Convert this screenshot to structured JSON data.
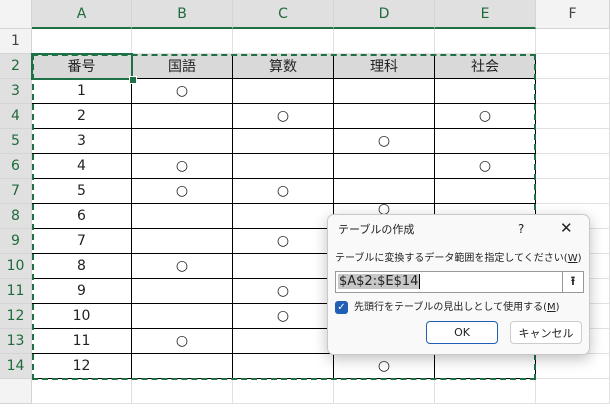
{
  "columns": [
    "A",
    "B",
    "C",
    "D",
    "E",
    "F"
  ],
  "rows": [
    "1",
    "2",
    "3",
    "4",
    "5",
    "6",
    "7",
    "8",
    "9",
    "10",
    "11",
    "12",
    "13",
    "14",
    ""
  ],
  "table": {
    "headers": [
      "番号",
      "国語",
      "算数",
      "理科",
      "社会"
    ],
    "rows": [
      [
        "1",
        "○",
        "",
        "",
        ""
      ],
      [
        "2",
        "",
        "○",
        "",
        "○"
      ],
      [
        "3",
        "",
        "",
        "○",
        ""
      ],
      [
        "4",
        "○",
        "",
        "",
        "○"
      ],
      [
        "5",
        "○",
        "○",
        "",
        ""
      ],
      [
        "6",
        "",
        "",
        "○",
        ""
      ],
      [
        "7",
        "",
        "○",
        "",
        ""
      ],
      [
        "8",
        "○",
        "",
        "",
        ""
      ],
      [
        "9",
        "",
        "○",
        "",
        ""
      ],
      [
        "10",
        "",
        "○",
        "",
        ""
      ],
      [
        "11",
        "○",
        "",
        "",
        ""
      ],
      [
        "12",
        "",
        "",
        "○",
        ""
      ]
    ]
  },
  "dialog": {
    "title": "テーブルの作成",
    "help": "?",
    "close": "✕",
    "range_label": "テーブルに変換するデータ範囲を指定してください(",
    "range_key": "W",
    "range_value": "$A$2:$E$14",
    "collapse_icon": "⭱",
    "checkbox_label": "先頭行をテーブルの見出しとして使用する(",
    "checkbox_key": "M",
    "checked": true,
    "ok": "OK",
    "cancel": "キャンセル"
  }
}
